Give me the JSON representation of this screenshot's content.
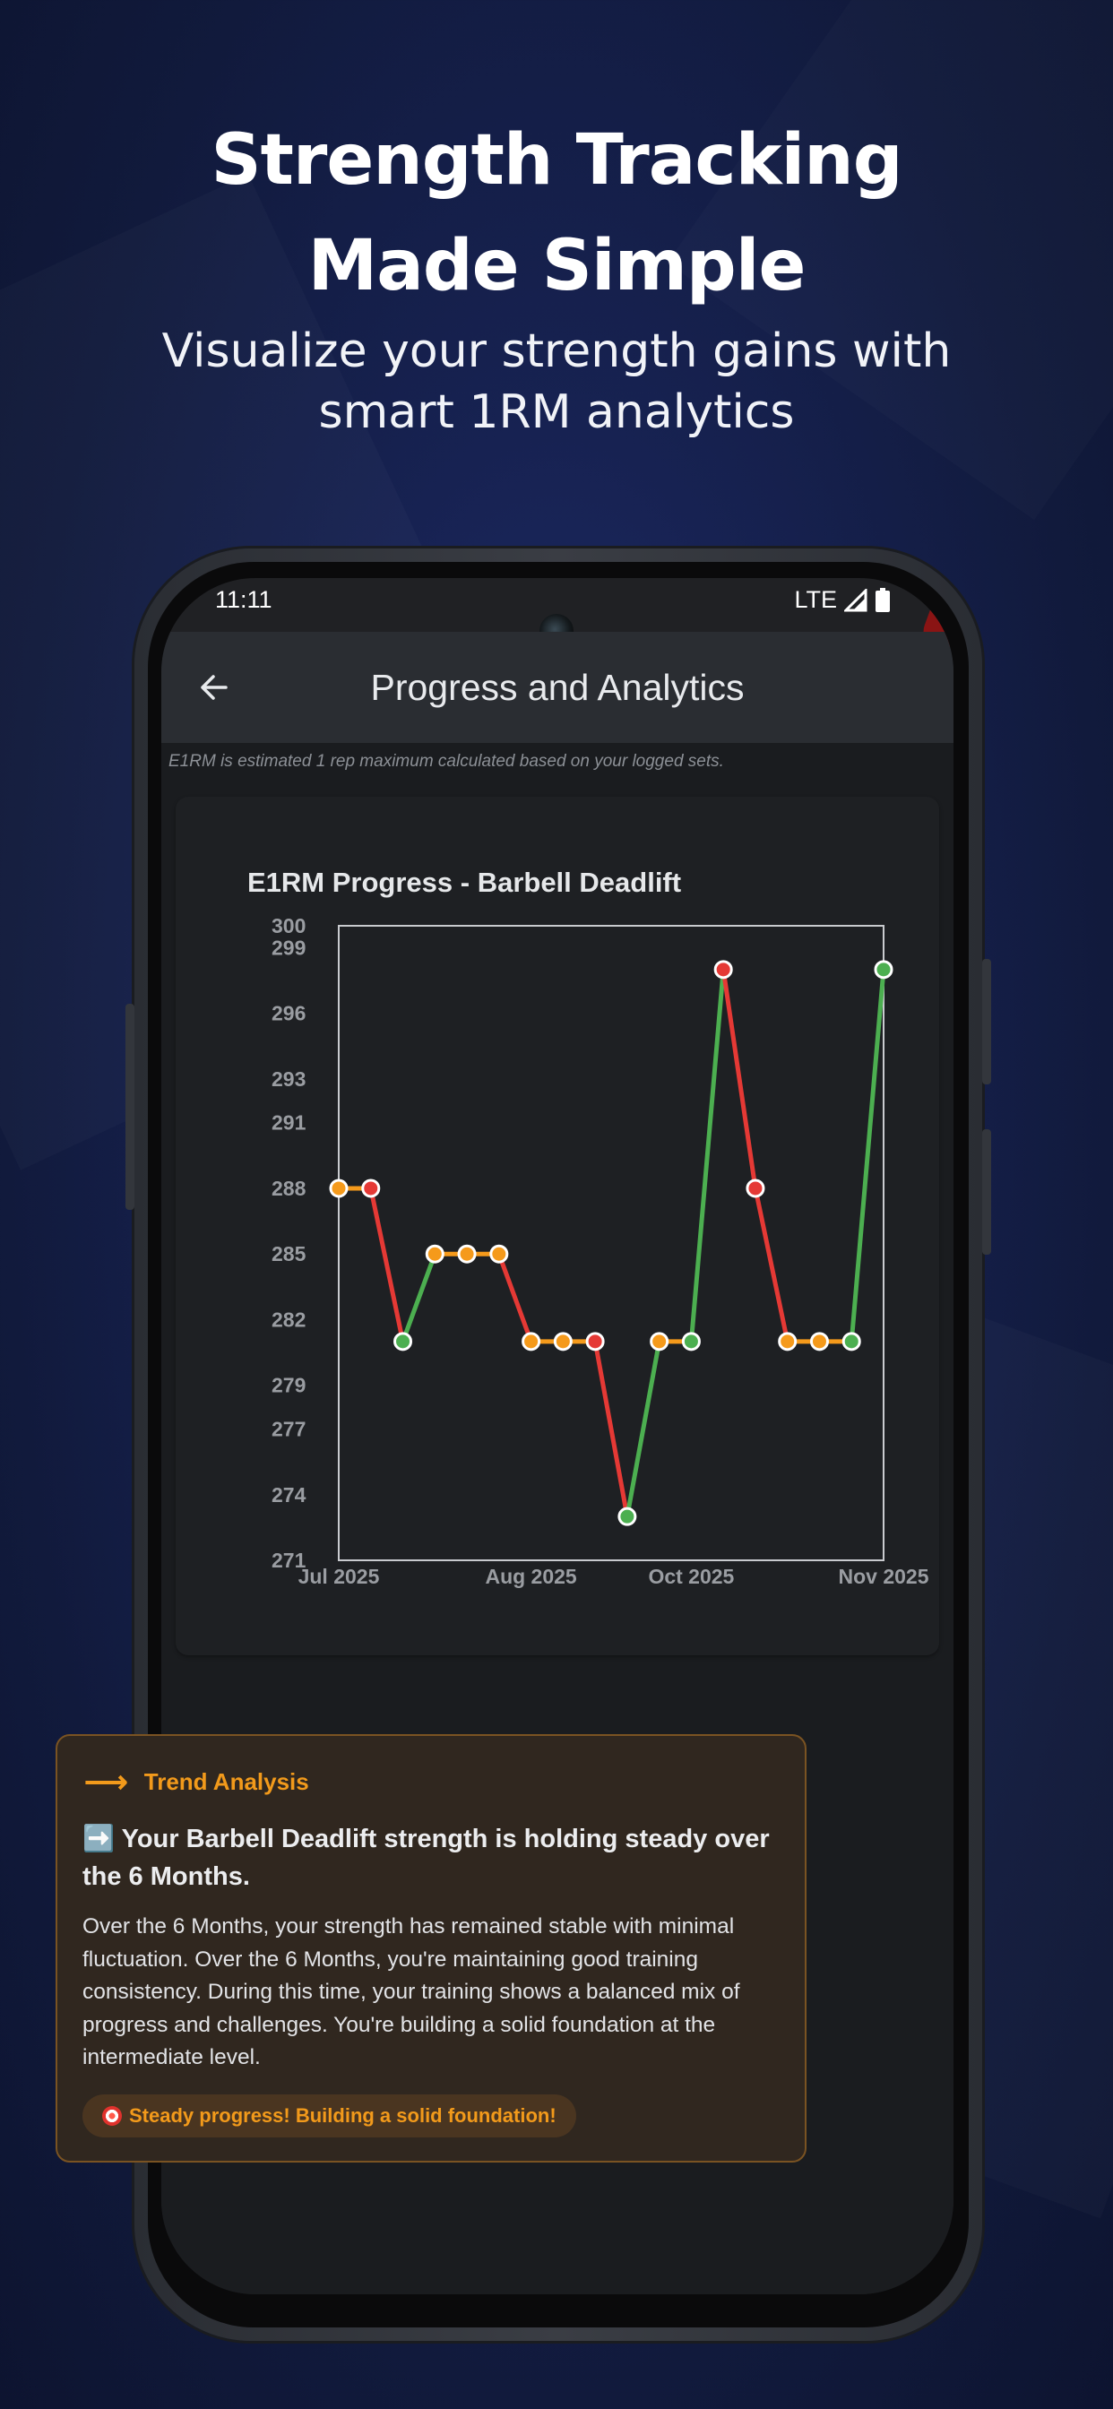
{
  "promo": {
    "headline_line1": "Strength Tracking",
    "headline_line2": "Made Simple",
    "subline_line1": "Visualize your strength gains with",
    "subline_line2": "smart 1RM analytics"
  },
  "status_bar": {
    "time": "11:11",
    "network": "LTE"
  },
  "app_bar": {
    "title": "Progress and Analytics",
    "back_icon": "arrow-left-icon"
  },
  "note": "E1RM is estimated 1 rep maximum calculated based on your logged sets.",
  "chart_data": {
    "type": "line",
    "title": "E1RM Progress - Barbell Deadlift",
    "xlabel": "",
    "ylabel": "",
    "y_tick_labels": [
      "271",
      "274",
      "277",
      "279",
      "282",
      "285",
      "288",
      "291",
      "293",
      "296",
      "299",
      "300"
    ],
    "x_tick_labels": [
      "Jul 2025",
      "Aug 2025",
      "Oct 2025",
      "Nov 2025"
    ],
    "ylim": [
      271,
      300
    ],
    "grid": false,
    "point_colors": {
      "increase": "#4caf50",
      "decrease": "#e53935",
      "same": "#f59a1b"
    },
    "series": [
      {
        "values": [
          288,
          288,
          281,
          285,
          285,
          285,
          281,
          281,
          281,
          273,
          281,
          281,
          298,
          288,
          281,
          281,
          281,
          298
        ],
        "point_status": [
          "same",
          "decrease",
          "increase",
          "same",
          "same",
          "same",
          "same",
          "same",
          "decrease",
          "increase",
          "same",
          "increase",
          "decrease",
          "decrease",
          "same",
          "same",
          "increase",
          "increase"
        ]
      }
    ]
  },
  "trend": {
    "header": "Trend Analysis",
    "arrow_icon": "trend-arrow-icon",
    "title": "➡️ Your Barbell Deadlift strength is holding steady over the 6 Months.",
    "body": "Over the 6 Months, your strength has remained stable with minimal fluctuation. Over the 6 Months, you're maintaining good training consistency. During this time, your training shows a balanced mix of progress and challenges. You're building a solid foundation at the intermediate level.",
    "badge": "Steady progress! Building a solid foundation!"
  },
  "colors": {
    "accent": "#f29a1b",
    "background": "#172252",
    "screen": "#1a1c1f"
  }
}
